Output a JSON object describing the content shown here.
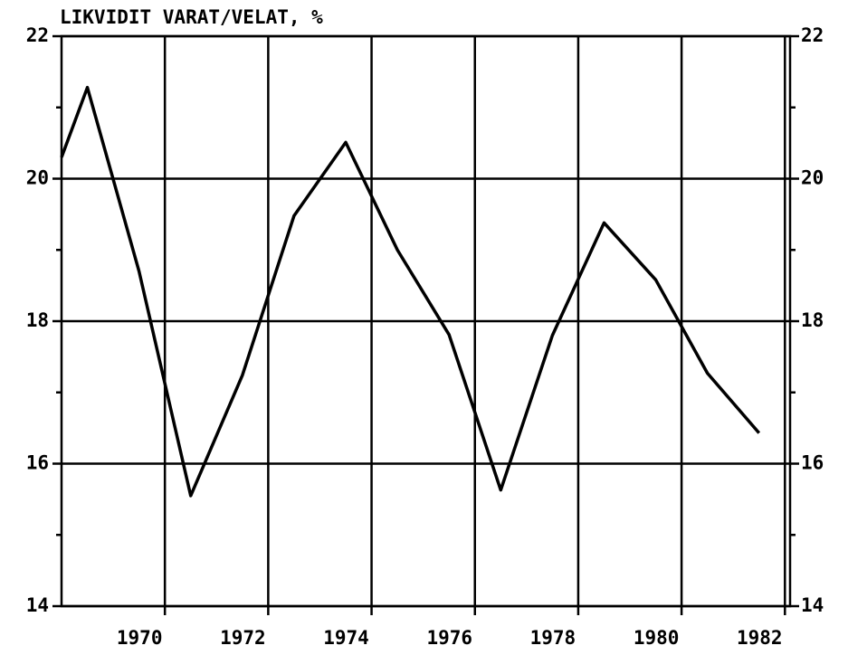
{
  "chart_data": {
    "type": "line",
    "title": "LIKVIDIT VARAT/VELAT, %",
    "x": [
      1968,
      1968.5,
      1969.5,
      1970.5,
      1971.5,
      1972.5,
      1973.5,
      1974.5,
      1975.5,
      1976.5,
      1977.5,
      1978.5,
      1979.5,
      1980.5,
      1981.5
    ],
    "series": [
      {
        "name": "LIKVIDIT VARAT/VELAT",
        "color": "#000000",
        "values": [
          20.3,
          21.28,
          18.7,
          15.55,
          17.24,
          19.48,
          20.51,
          19.0,
          17.81,
          15.63,
          17.8,
          19.38,
          18.58,
          17.27,
          16.43
        ]
      }
    ],
    "xlim": [
      1968,
      1982.1
    ],
    "xticks": [
      1970,
      1972,
      1974,
      1976,
      1978,
      1980,
      1982
    ],
    "ylim": [
      14,
      22
    ],
    "yticks": [
      14,
      16,
      18,
      20,
      22
    ],
    "yminorticks": [
      15,
      17,
      19,
      21
    ],
    "grid": true,
    "right_axis": true
  }
}
